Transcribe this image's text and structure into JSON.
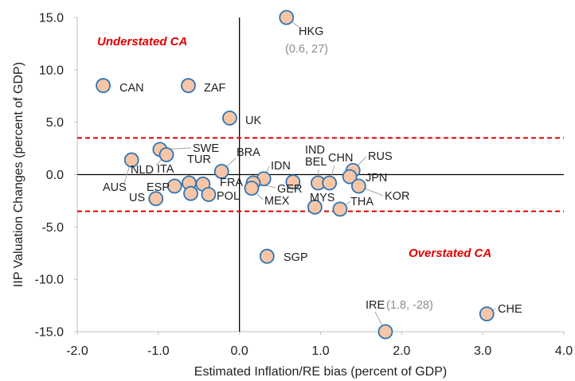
{
  "chart_data": {
    "type": "scatter",
    "xlabel": "Estimated Inflation/RE bias (percent of GDP)",
    "ylabel": "IIP Valuation Changes (percent of GDP)",
    "xlim": [
      -2.0,
      4.0
    ],
    "ylim": [
      -15.0,
      15.0
    ],
    "x_ticks": [
      "-2.0",
      "-1.0",
      "0.0",
      "1.0",
      "2.0",
      "3.0",
      "4.0"
    ],
    "y_ticks": [
      "15.0",
      "10.0",
      "5.0",
      "0.0",
      "-5.0",
      "-10.0",
      "-15.0"
    ],
    "grid": false,
    "threshold_lines": [
      3.5,
      -3.5
    ],
    "threshold_color": "#e00000",
    "marker_fill": "#f8c6a6",
    "marker_stroke": "#2e75b6",
    "regions": [
      {
        "text": "Understated CA",
        "color": "#e00000"
      },
      {
        "text": "Overstated CA",
        "color": "#e00000"
      }
    ],
    "points": [
      {
        "label": "HKG",
        "x": 0.58,
        "y": 15.0,
        "note": "(0.6, 27)"
      },
      {
        "label": "CAN",
        "x": -1.68,
        "y": 8.5
      },
      {
        "label": "ZAF",
        "x": -0.63,
        "y": 8.5
      },
      {
        "label": "UK",
        "x": -0.12,
        "y": 5.4
      },
      {
        "label": "SWE",
        "x": -0.98,
        "y": 2.4
      },
      {
        "label": "NLD",
        "x": -0.9,
        "y": 1.9
      },
      {
        "label": "AUS",
        "x": -1.33,
        "y": 1.4
      },
      {
        "label": "ITA",
        "x": -0.8,
        "y": -1.1
      },
      {
        "label": "ESP",
        "x": -0.62,
        "y": -0.8
      },
      {
        "label": "US",
        "x": -1.03,
        "y": -2.3
      },
      {
        "label": "TUR",
        "x": -0.45,
        "y": -0.9
      },
      {
        "label": "FRA",
        "x": -0.6,
        "y": -1.8
      },
      {
        "label": "POL",
        "x": -0.38,
        "y": -1.9
      },
      {
        "label": "BRA",
        "x": -0.22,
        "y": 0.3
      },
      {
        "label": "IDN",
        "x": 0.3,
        "y": -0.4
      },
      {
        "label": "GER",
        "x": 0.17,
        "y": -0.8
      },
      {
        "label": "MEX",
        "x": 0.15,
        "y": -1.3
      },
      {
        "label": "IND",
        "x": 0.66,
        "y": -0.7
      },
      {
        "label": "BEL",
        "x": 0.97,
        "y": -0.8
      },
      {
        "label": "CHN",
        "x": 1.11,
        "y": -0.8
      },
      {
        "label": "MYS",
        "x": 0.93,
        "y": -3.1
      },
      {
        "label": "THA",
        "x": 1.24,
        "y": -3.3
      },
      {
        "label": "RUS",
        "x": 1.4,
        "y": 0.4
      },
      {
        "label": "JPN",
        "x": 1.36,
        "y": -0.2
      },
      {
        "label": "KOR",
        "x": 1.47,
        "y": -1.1
      },
      {
        "label": "SGP",
        "x": 0.34,
        "y": -7.8
      },
      {
        "label": "IRE",
        "x": 1.8,
        "y": -15.0,
        "note": "(1.8, -28)"
      },
      {
        "label": "CHE",
        "x": 3.05,
        "y": -13.3
      }
    ]
  }
}
